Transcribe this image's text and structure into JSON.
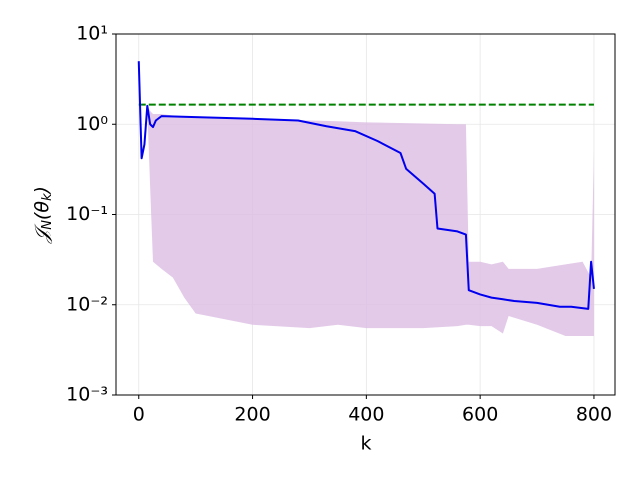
{
  "chart_data": {
    "type": "line",
    "xlabel": "k",
    "ylabel": [
      "𝒥",
      "N",
      "(θ",
      "k",
      ")"
    ],
    "log_y": true,
    "grid": true,
    "xlim": [
      -40,
      837
    ],
    "ylim": [
      0.001,
      10
    ],
    "xticks": [
      0,
      200,
      400,
      600,
      800
    ],
    "yticks": [
      {
        "value": 0.001,
        "label": "10⁻³"
      },
      {
        "value": 0.01,
        "label": "10⁻²"
      },
      {
        "value": 0.1,
        "label": "10⁻¹"
      },
      {
        "value": 1,
        "label": "10⁰"
      },
      {
        "value": 10,
        "label": "10¹"
      }
    ],
    "band": {
      "color": "#dcbde3",
      "x": [
        0,
        5,
        15,
        20,
        25,
        40,
        60,
        80,
        100,
        200,
        300,
        350,
        400,
        500,
        560,
        575,
        580,
        600,
        620,
        640,
        650,
        700,
        750,
        780,
        795,
        800
      ],
      "upper": [
        5,
        0.42,
        1.6,
        1.4,
        1.3,
        1.3,
        1.25,
        1.22,
        1.2,
        1.15,
        1.1,
        1.08,
        1.05,
        1.02,
        1.0,
        1.0,
        0.03,
        0.03,
        0.028,
        0.03,
        0.025,
        0.025,
        0.028,
        0.03,
        0.02,
        0.5
      ],
      "lower": [
        5,
        0.42,
        1.5,
        0.2,
        0.03,
        0.025,
        0.02,
        0.012,
        0.008,
        0.006,
        0.0055,
        0.006,
        0.0055,
        0.0055,
        0.0058,
        0.006,
        0.006,
        0.0058,
        0.0058,
        0.0048,
        0.0075,
        0.006,
        0.0045,
        0.0045,
        0.0045,
        0.0045
      ]
    },
    "line": {
      "color": "#0000ee",
      "x": [
        0,
        5,
        10,
        15,
        20,
        25,
        30,
        40,
        100,
        200,
        280,
        330,
        380,
        420,
        460,
        470,
        500,
        520,
        525,
        560,
        575,
        580,
        600,
        620,
        640,
        660,
        700,
        740,
        760,
        790,
        795,
        800
      ],
      "values": [
        5,
        0.42,
        0.6,
        1.6,
        1.0,
        0.93,
        1.1,
        1.23,
        1.2,
        1.15,
        1.1,
        0.95,
        0.84,
        0.65,
        0.48,
        0.32,
        0.22,
        0.17,
        0.07,
        0.065,
        0.06,
        0.0145,
        0.013,
        0.012,
        0.0115,
        0.011,
        0.0105,
        0.0095,
        0.0095,
        0.009,
        0.03,
        0.015
      ]
    },
    "reference": {
      "color": "#008000",
      "x": [
        0,
        800
      ],
      "values": [
        1.65,
        1.65
      ]
    }
  }
}
